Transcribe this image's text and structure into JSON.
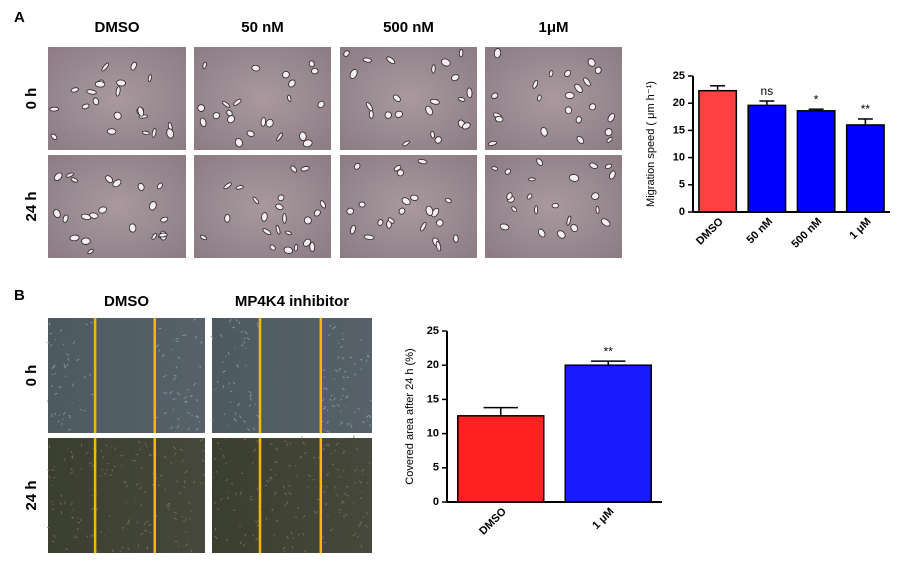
{
  "panels": [
    {
      "label": "A",
      "columns": [
        "DMSO",
        "50 nM",
        "500 nM",
        "1μM"
      ],
      "rows": [
        "0 h",
        "24 h"
      ]
    },
    {
      "label": "B",
      "columns": [
        "DMSO",
        "MP4K4 inhibitor"
      ],
      "rows": [
        "0 h",
        "24 h"
      ]
    }
  ],
  "chart_data": [
    {
      "type": "bar",
      "ylabel": "Migration speed ( μm h⁻¹)",
      "categories": [
        "DMSO",
        "50 nM",
        "500 nM",
        "1 μM"
      ],
      "values": [
        22.3,
        19.6,
        18.6,
        16.0
      ],
      "errors": [
        0.9,
        0.8,
        0.3,
        1.1
      ],
      "annotations": [
        null,
        "ns",
        "*",
        "**"
      ],
      "colors": [
        "#ff4040",
        "#0000ff",
        "#0000ff",
        "#0000ff"
      ],
      "ylim": [
        0,
        25
      ],
      "yticks": [
        0,
        5,
        10,
        15,
        20,
        25
      ]
    },
    {
      "type": "bar",
      "ylabel": "Covered area after 24 h (%)",
      "categories": [
        "DMSO",
        "1 μM"
      ],
      "values": [
        12.6,
        20.0
      ],
      "errors": [
        1.2,
        0.6
      ],
      "annotations": [
        null,
        "**"
      ],
      "colors": [
        "#ff2020",
        "#1a1aff"
      ],
      "ylim": [
        0,
        25
      ],
      "yticks": [
        0,
        5,
        10,
        15,
        20,
        25
      ]
    }
  ]
}
